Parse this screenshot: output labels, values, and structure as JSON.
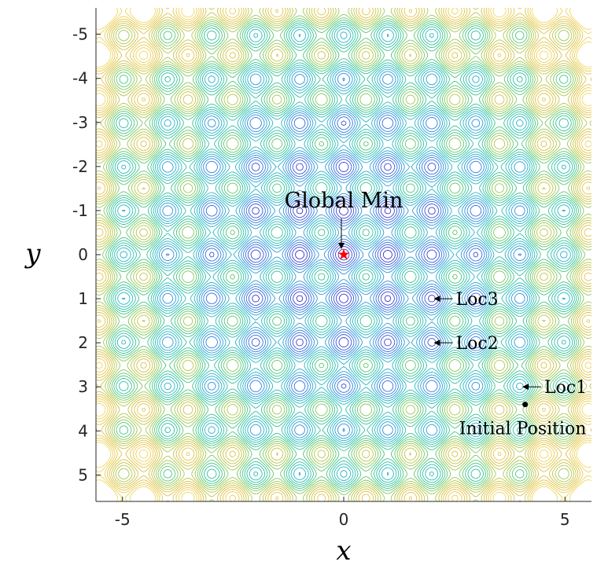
{
  "chart_data": {
    "type": "contour",
    "function": "Rastrigin-like multimodal landscape",
    "xlim": [
      -5.6,
      5.6
    ],
    "ylim": [
      -5.6,
      5.6
    ],
    "y_reversed": true,
    "xlabel": "x",
    "ylabel": "y",
    "x_ticks": [
      -5,
      0,
      5
    ],
    "x_tick_labels": [
      "-5",
      "0",
      "5"
    ],
    "y_ticks": [
      -5,
      -4,
      -3,
      -2,
      -1,
      0,
      1,
      2,
      3,
      4,
      5
    ],
    "y_tick_labels": [
      "-5",
      "-4",
      "-3",
      "-2",
      "-1",
      "0",
      "1",
      "2",
      "3",
      "4",
      "5"
    ],
    "colormap": [
      "#3b2ed0",
      "#2f7de0",
      "#22b8c8",
      "#35c48a",
      "#a8c84a",
      "#e0c040",
      "#f0d860"
    ],
    "grid": false,
    "points": [
      {
        "name": "Global Min",
        "x": 0,
        "y": 0,
        "color": "#ff0000",
        "marker": "star"
      },
      {
        "name": "Initial Position",
        "x": 4.1,
        "y": 3.4,
        "color": "#000000",
        "marker": "dot"
      }
    ],
    "annotations": [
      {
        "text": "Global Min",
        "target_x": 0,
        "target_y": 0
      },
      {
        "text": "Loc3",
        "target_x": 2,
        "target_y": 1
      },
      {
        "text": "Loc2",
        "target_x": 2,
        "target_y": 2
      },
      {
        "text": "Loc1",
        "target_x": 4,
        "target_y": 3
      },
      {
        "text": "Initial Position",
        "target_x": 4.1,
        "target_y": 3.4
      }
    ]
  }
}
